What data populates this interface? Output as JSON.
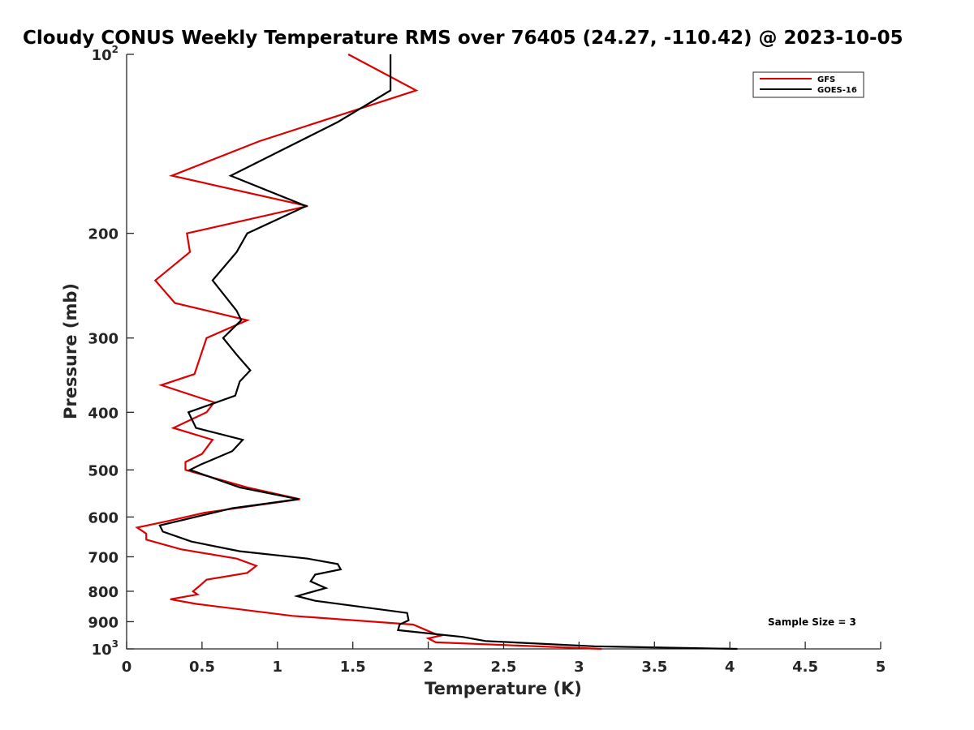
{
  "chart_data": {
    "type": "line",
    "title": "Cloudy CONUS Weekly Temperature RMS over 76405 (24.27, -110.42) @ 2023-10-05",
    "xlabel": "Temperature (K)",
    "ylabel": "Pressure (mb)",
    "xlim": [
      0,
      5
    ],
    "ylim": [
      100,
      1000
    ],
    "y_scale": "log",
    "y_reversed": true,
    "grid": false,
    "legend_position": "top-right",
    "x_ticks": [
      {
        "value": 0,
        "label": "0"
      },
      {
        "value": 0.5,
        "label": "0.5"
      },
      {
        "value": 1,
        "label": "1"
      },
      {
        "value": 1.5,
        "label": "1.5"
      },
      {
        "value": 2,
        "label": "2"
      },
      {
        "value": 2.5,
        "label": "2.5"
      },
      {
        "value": 3,
        "label": "3"
      },
      {
        "value": 3.5,
        "label": "3.5"
      },
      {
        "value": 4,
        "label": "4"
      },
      {
        "value": 4.5,
        "label": "4.5"
      },
      {
        "value": 5,
        "label": "5"
      }
    ],
    "y_ticks": [
      {
        "value": 100,
        "label": "10",
        "sup": "2"
      },
      {
        "value": 200,
        "label": "200"
      },
      {
        "value": 300,
        "label": "300"
      },
      {
        "value": 400,
        "label": "400"
      },
      {
        "value": 500,
        "label": "500"
      },
      {
        "value": 600,
        "label": "600"
      },
      {
        "value": 700,
        "label": "700"
      },
      {
        "value": 800,
        "label": "800"
      },
      {
        "value": 900,
        "label": "900"
      },
      {
        "value": 1000,
        "label": "10",
        "sup": "3"
      }
    ],
    "annotation": "Sample Size = 3",
    "series": [
      {
        "name": "GFS",
        "color": "#dd0000",
        "points": [
          [
            1.47,
            100
          ],
          [
            1.92,
            115
          ],
          [
            0.88,
            140
          ],
          [
            0.3,
            160
          ],
          [
            1.2,
            180
          ],
          [
            0.4,
            200
          ],
          [
            0.42,
            215
          ],
          [
            0.19,
            240
          ],
          [
            0.32,
            262
          ],
          [
            0.8,
            280
          ],
          [
            0.53,
            300
          ],
          [
            0.45,
            345
          ],
          [
            0.23,
            360
          ],
          [
            0.58,
            385
          ],
          [
            0.53,
            400
          ],
          [
            0.31,
            425
          ],
          [
            0.57,
            445
          ],
          [
            0.5,
            470
          ],
          [
            0.39,
            485
          ],
          [
            0.39,
            500
          ],
          [
            0.8,
            535
          ],
          [
            1.15,
            560
          ],
          [
            0.52,
            590
          ],
          [
            0.27,
            610
          ],
          [
            0.07,
            625
          ],
          [
            0.13,
            640
          ],
          [
            0.13,
            655
          ],
          [
            0.36,
            680
          ],
          [
            0.73,
            705
          ],
          [
            0.86,
            725
          ],
          [
            0.8,
            745
          ],
          [
            0.53,
            765
          ],
          [
            0.48,
            785
          ],
          [
            0.44,
            800
          ],
          [
            0.47,
            810
          ],
          [
            0.29,
            825
          ],
          [
            0.46,
            840
          ],
          [
            1.1,
            880
          ],
          [
            1.9,
            910
          ],
          [
            2.03,
            940
          ],
          [
            2.08,
            950
          ],
          [
            2.0,
            960
          ],
          [
            2.05,
            975
          ],
          [
            3.15,
            1000
          ]
        ]
      },
      {
        "name": "GOES-16",
        "color": "#000000",
        "points": [
          [
            1.75,
            100
          ],
          [
            1.75,
            115
          ],
          [
            1.4,
            130
          ],
          [
            0.69,
            160
          ],
          [
            1.19,
            180
          ],
          [
            0.8,
            200
          ],
          [
            0.73,
            215
          ],
          [
            0.57,
            240
          ],
          [
            0.73,
            270
          ],
          [
            0.76,
            280
          ],
          [
            0.64,
            300
          ],
          [
            0.73,
            320
          ],
          [
            0.82,
            340
          ],
          [
            0.75,
            355
          ],
          [
            0.72,
            375
          ],
          [
            0.41,
            400
          ],
          [
            0.46,
            425
          ],
          [
            0.77,
            445
          ],
          [
            0.7,
            465
          ],
          [
            0.49,
            490
          ],
          [
            0.42,
            500
          ],
          [
            0.75,
            535
          ],
          [
            1.14,
            560
          ],
          [
            0.7,
            580
          ],
          [
            0.22,
            620
          ],
          [
            0.24,
            635
          ],
          [
            0.43,
            660
          ],
          [
            0.75,
            685
          ],
          [
            1.2,
            705
          ],
          [
            1.4,
            720
          ],
          [
            1.42,
            735
          ],
          [
            1.25,
            750
          ],
          [
            1.22,
            770
          ],
          [
            1.32,
            790
          ],
          [
            1.13,
            815
          ],
          [
            1.25,
            830
          ],
          [
            1.86,
            870
          ],
          [
            1.87,
            895
          ],
          [
            1.81,
            910
          ],
          [
            1.8,
            930
          ],
          [
            2.23,
            955
          ],
          [
            2.38,
            970
          ],
          [
            3.1,
            990
          ],
          [
            4.05,
            1000
          ]
        ]
      }
    ]
  }
}
